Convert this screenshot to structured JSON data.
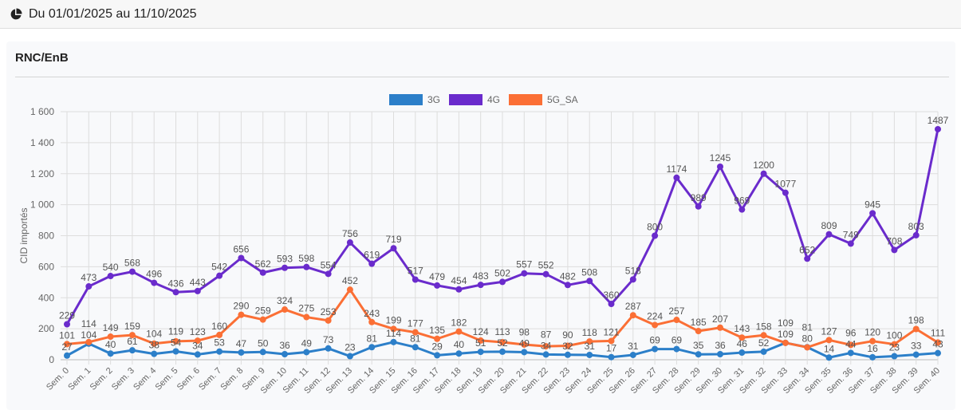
{
  "header": {
    "title": "Du 01/01/2025 au 11/10/2025",
    "icon": "pie-chart-icon"
  },
  "card": {
    "title": "RNC/EnB"
  },
  "chart_data": {
    "type": "line",
    "title": "RNC/EnB",
    "ylabel": "CID importés",
    "xlabel": "",
    "ylim": [
      0,
      1600
    ],
    "yticks": [
      "0",
      "200",
      "400",
      "600",
      "800",
      "1 000",
      "1 200",
      "1 400",
      "1 600"
    ],
    "ytick_values": [
      0,
      200,
      400,
      600,
      800,
      1000,
      1200,
      1400,
      1600
    ],
    "legend_position": "top-center",
    "grid": true,
    "categories": [
      "Sem. 0",
      "Sem. 1",
      "Sem. 2",
      "Sem. 3",
      "Sem. 4",
      "Sem. 5",
      "Sem. 6",
      "Sem. 7",
      "Sem. 8",
      "Sem. 9",
      "Sem. 10",
      "Sem. 11",
      "Sem. 12",
      "Sem. 13",
      "Sem. 14",
      "Sem. 15",
      "Sem. 16",
      "Sem. 17",
      "Sem. 18",
      "Sem. 19",
      "Sem. 20",
      "Sem. 21",
      "Sem. 22",
      "Sem. 23",
      "Sem. 24",
      "Sem. 25",
      "Sem. 26",
      "Sem. 27",
      "Sem. 28",
      "Sem. 29",
      "Sem. 30",
      "Sem. 31",
      "Sem. 32",
      "Sem. 33",
      "Sem. 34",
      "Sem. 35",
      "Sem. 36",
      "Sem. 37",
      "Sem. 38",
      "Sem. 39",
      "Sem. 40"
    ],
    "series": [
      {
        "name": "3G",
        "color": "#2c7fc9",
        "values": [
          27,
          104,
          40,
          61,
          38,
          54,
          34,
          53,
          47,
          50,
          36,
          49,
          73,
          23,
          81,
          114,
          81,
          29,
          40,
          51,
          52,
          49,
          34,
          32,
          31,
          17,
          31,
          69,
          69,
          35,
          36,
          46,
          52,
          109,
          81,
          14,
          44,
          16,
          23,
          33,
          43
        ]
      },
      {
        "name": "4G",
        "color": "#6a2bcc",
        "values": [
          229,
          473,
          540,
          568,
          496,
          436,
          443,
          542,
          656,
          562,
          593,
          598,
          554,
          756,
          619,
          719,
          517,
          479,
          454,
          483,
          502,
          557,
          552,
          482,
          508,
          360,
          518,
          800,
          1174,
          989,
          1245,
          969,
          1200,
          1077,
          652,
          809,
          749,
          945,
          708,
          803,
          1487
        ]
      },
      {
        "name": "5G_SA",
        "color": "#fb6f35",
        "values": [
          101,
          114,
          149,
          159,
          104,
          119,
          123,
          160,
          290,
          259,
          324,
          275,
          253,
          452,
          243,
          199,
          177,
          135,
          182,
          124,
          113,
          98,
          87,
          90,
          118,
          121,
          287,
          224,
          257,
          185,
          207,
          143,
          158,
          109,
          80,
          127,
          96,
          120,
          100,
          198,
          111
        ]
      }
    ]
  }
}
